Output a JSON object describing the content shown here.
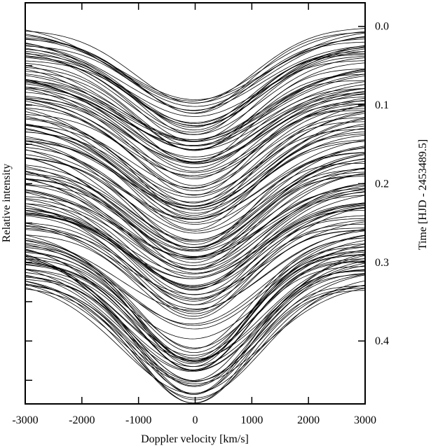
{
  "chart_data": {
    "type": "line",
    "title": "",
    "xlabel": "Doppler velocity [km/s]",
    "ylabel": "Relative intensity",
    "y2label": "Time [HJD - 2453489.5]",
    "xlim": [
      -3000,
      3000
    ],
    "y2lim": [
      -0.03,
      0.48
    ],
    "x_ticks": [
      -3000,
      -2000,
      -1000,
      0,
      1000,
      2000,
      3000
    ],
    "y2_ticks": [
      0.0,
      0.1,
      0.2,
      0.3,
      0.4
    ],
    "y2_tick_labels": [
      "0.0",
      "0.1",
      "0.2",
      "0.3",
      "0.4"
    ],
    "left_ticks_unlabeled": true,
    "grid": false,
    "line_color": "#000000",
    "profile_shape": {
      "line_center": 0,
      "continuum_edges": [
        -3000,
        3000
      ],
      "min_at_velocity": 0
    },
    "series_groups": [
      {
        "group": "group-1",
        "time_start": 0.0,
        "time_end": 0.09,
        "count": 42,
        "depth_in_time_units": 0.095
      },
      {
        "group": "group-2",
        "time_start": 0.09,
        "time_end": 0.27,
        "count": 78,
        "depth_in_time_units": 0.11
      },
      {
        "group": "group-3",
        "time_start": 0.27,
        "time_end": 0.33,
        "count": 34,
        "depth_in_time_units": 0.14
      }
    ]
  }
}
